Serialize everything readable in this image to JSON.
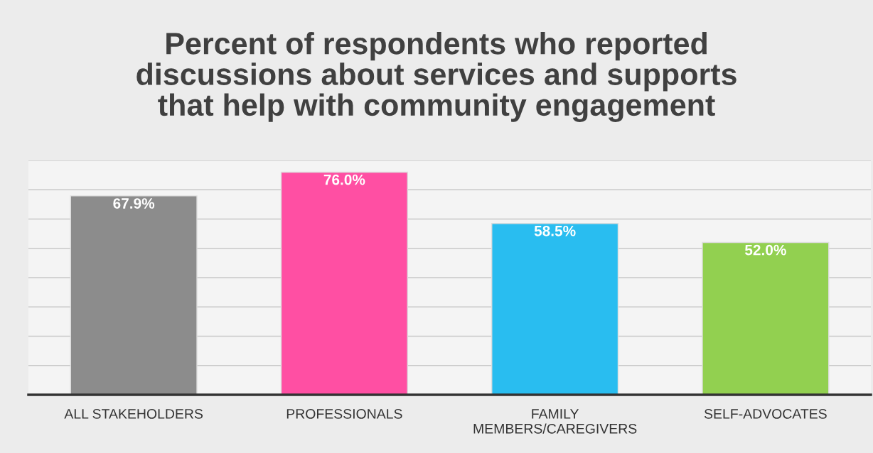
{
  "chart_data": {
    "type": "bar",
    "title": "Percent of respondents who reported\ndiscussions about services and supports\nthat help with community engagement",
    "categories": [
      "ALL STAKEHOLDERS",
      "PROFESSIONALS",
      "FAMILY\nMEMBERS/CAREGIVERS",
      "SELF-ADVOCATES"
    ],
    "values": [
      67.9,
      76.0,
      58.5,
      52.0
    ],
    "colors": [
      "#8c8c8c",
      "#ff4fa3",
      "#29bdf0",
      "#92d050"
    ],
    "value_labels": [
      "67.9%",
      "76.0%",
      "58.5%",
      "52.0%"
    ],
    "ylim": [
      0,
      80
    ],
    "yticks": [
      {
        "value": 0,
        "label": null
      },
      {
        "value": 10,
        "label": null
      },
      {
        "value": 20,
        "label": null
      },
      {
        "value": 30,
        "label": null
      },
      {
        "value": 40,
        "label": null
      },
      {
        "value": 50,
        "label": null
      },
      {
        "value": 60,
        "label": null
      },
      {
        "value": 70,
        "label": null
      },
      {
        "value": 80,
        "label": null
      }
    ],
    "tick_labels": "x",
    "grid": "y"
  }
}
